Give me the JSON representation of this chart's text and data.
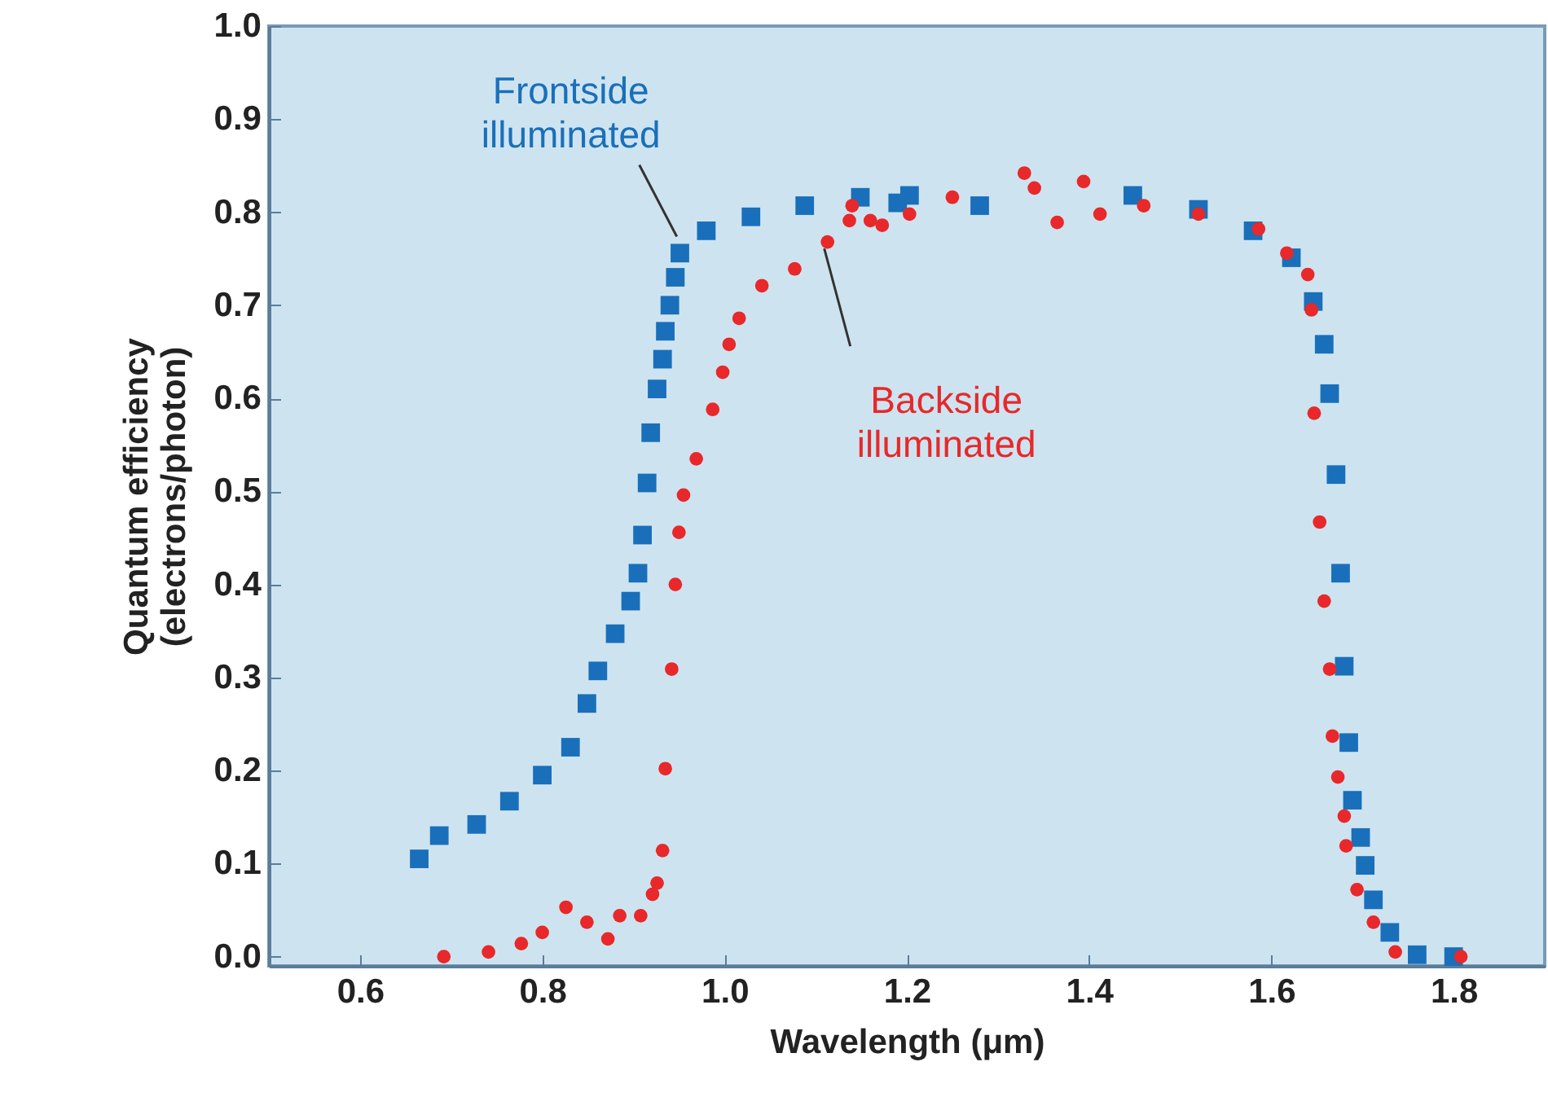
{
  "chart_data": {
    "type": "scatter",
    "xlabel": "Wavelength (μm)",
    "ylabel": "Quantum efficiency (electrons/photon)",
    "xlim": [
      0.5,
      1.9
    ],
    "ylim": [
      -0.01,
      1.0
    ],
    "xticks": [
      0.6,
      0.8,
      {
        "value": 1.0,
        "label": "1.0"
      },
      1.2,
      1.4,
      1.6,
      1.8
    ],
    "yticks": [
      {
        "value": 0,
        "label": "0.0"
      },
      0.1,
      0.2,
      0.3,
      0.4,
      0.5,
      0.6,
      0.7,
      0.8,
      0.9,
      {
        "value": 1.0,
        "label": "1.0"
      }
    ],
    "grid": false,
    "annotations": [
      {
        "text": "Frontside illuminated",
        "x": 0.953,
        "y": 0.765
      },
      {
        "text": "Backside illuminated",
        "x": 1.113,
        "y": 0.768
      }
    ],
    "series": [
      {
        "color": "#1a6fba",
        "marker": "square",
        "x": [
          0.665,
          0.687,
          0.728,
          0.764,
          0.8,
          0.831,
          0.849,
          0.861,
          0.88,
          0.897,
          0.905,
          0.91,
          0.915,
          0.919,
          0.926,
          0.932,
          0.935,
          0.94,
          0.946,
          0.951,
          0.98,
          1.029,
          1.088,
          1.149,
          1.19,
          1.203,
          1.28,
          1.448,
          1.52,
          1.58,
          1.622,
          1.646,
          1.658,
          1.664,
          1.671,
          1.676,
          1.68,
          1.685,
          1.689,
          1.698,
          1.703,
          1.712,
          1.73,
          1.76,
          1.8
        ],
        "values": [
          0.105,
          0.13,
          0.142,
          0.167,
          0.195,
          0.225,
          0.272,
          0.307,
          0.347,
          0.382,
          0.412,
          0.453,
          0.509,
          0.563,
          0.61,
          0.642,
          0.672,
          0.7,
          0.73,
          0.756,
          0.78,
          0.795,
          0.807,
          0.816,
          0.81,
          0.818,
          0.807,
          0.818,
          0.803,
          0.78,
          0.751,
          0.704,
          0.658,
          0.605,
          0.518,
          0.412,
          0.312,
          0.23,
          0.168,
          0.128,
          0.098,
          0.061,
          0.026,
          0.002,
          0.0
        ]
      },
      {
        "color": "#e8282a",
        "marker": "circle",
        "x": [
          0.692,
          0.741,
          0.777,
          0.8,
          0.826,
          0.849,
          0.872,
          0.885,
          0.908,
          0.921,
          0.926,
          0.932,
          0.935,
          0.942,
          0.946,
          0.95,
          0.955,
          0.969,
          0.987,
          0.998,
          1.005,
          1.016,
          1.041,
          1.077,
          1.113,
          1.137,
          1.14,
          1.16,
          1.173,
          1.203,
          1.25,
          1.329,
          1.34,
          1.365,
          1.394,
          1.412,
          1.46,
          1.52,
          1.586,
          1.617,
          1.64,
          1.644,
          1.647,
          1.653,
          1.658,
          1.664,
          1.667,
          1.673,
          1.68,
          1.682,
          1.694,
          1.712,
          1.736,
          1.808
        ],
        "values": [
          0.0,
          0.005,
          0.014,
          0.026,
          0.053,
          0.037,
          0.019,
          0.044,
          0.044,
          0.067,
          0.079,
          0.114,
          0.202,
          0.309,
          0.4,
          0.456,
          0.496,
          0.535,
          0.588,
          0.628,
          0.658,
          0.686,
          0.721,
          0.739,
          0.768,
          0.791,
          0.807,
          0.791,
          0.786,
          0.798,
          0.816,
          0.842,
          0.826,
          0.789,
          0.833,
          0.798,
          0.807,
          0.798,
          0.782,
          0.756,
          0.733,
          0.695,
          0.584,
          0.467,
          0.382,
          0.309,
          0.237,
          0.193,
          0.151,
          0.119,
          0.072,
          0.037,
          0.005,
          0.0
        ]
      }
    ]
  }
}
